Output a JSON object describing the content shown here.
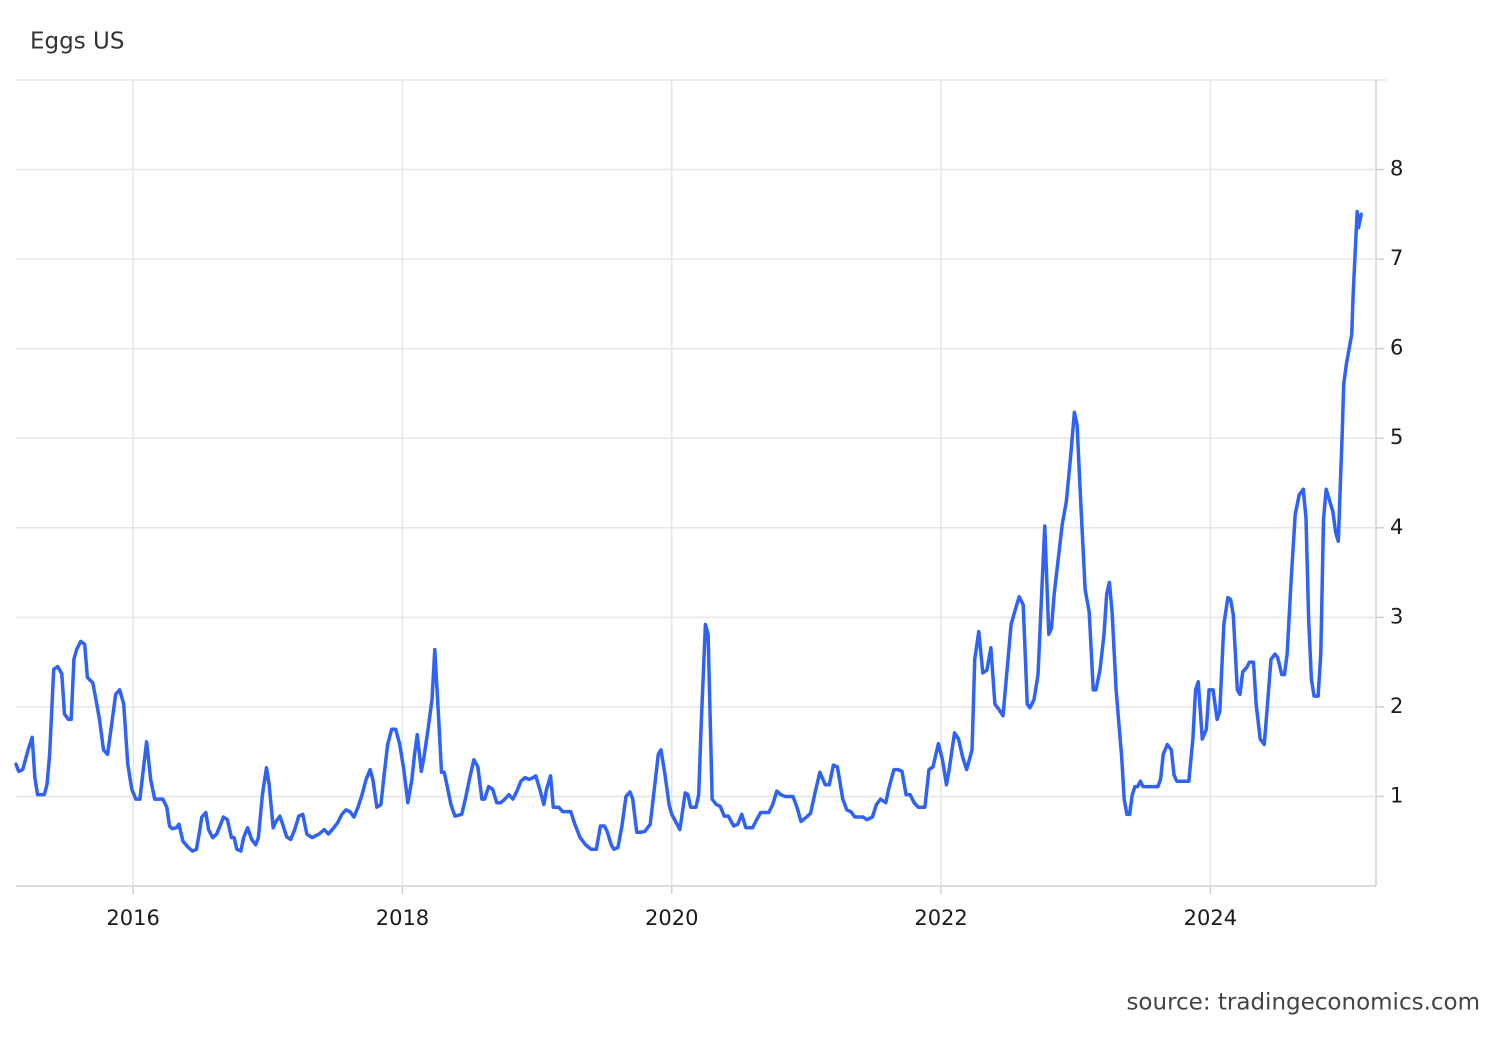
{
  "chart_data": {
    "type": "line",
    "title": "Eggs US",
    "source": "source: tradingeconomics.com",
    "color": "#2f62f5",
    "grid": true,
    "xlim": [
      2015.13,
      2025.23
    ],
    "xticks": [
      2016,
      2018,
      2020,
      2022,
      2024
    ],
    "ylim": [
      0,
      9
    ],
    "yticks": [
      1,
      2,
      3,
      4,
      5,
      6,
      7,
      8
    ],
    "x": [
      2015.13,
      2015.15,
      2015.18,
      2015.22,
      2015.25,
      2015.27,
      2015.29,
      2015.34,
      2015.36,
      2015.38,
      2015.41,
      2015.44,
      2015.47,
      2015.49,
      2015.52,
      2015.54,
      2015.56,
      2015.58,
      2015.61,
      2015.64,
      2015.66,
      2015.7,
      2015.73,
      2015.75,
      2015.78,
      2015.81,
      2015.84,
      2015.87,
      2015.9,
      2015.93,
      2015.96,
      2015.99,
      2016.02,
      2016.05,
      2016.08,
      2016.1,
      2016.13,
      2016.16,
      2016.22,
      2016.25,
      2016.27,
      2016.29,
      2016.32,
      2016.34,
      2016.37,
      2016.41,
      2016.44,
      2016.47,
      2016.49,
      2016.51,
      2016.54,
      2016.56,
      2016.59,
      2016.62,
      2016.65,
      2016.67,
      2016.7,
      2016.73,
      2016.75,
      2016.77,
      2016.8,
      2016.82,
      2016.85,
      2016.88,
      2016.91,
      2016.93,
      2016.96,
      2016.99,
      2017.01,
      2017.04,
      2017.06,
      2017.09,
      2017.11,
      2017.14,
      2017.17,
      2017.2,
      2017.23,
      2017.26,
      2017.29,
      2017.33,
      2017.38,
      2017.42,
      2017.45,
      2017.49,
      2017.52,
      2017.55,
      2017.58,
      2017.61,
      2017.64,
      2017.67,
      2017.7,
      2017.73,
      2017.76,
      2017.78,
      2017.81,
      2017.84,
      2017.86,
      2017.89,
      2017.92,
      2017.95,
      2017.98,
      2018.01,
      2018.04,
      2018.07,
      2018.09,
      2018.11,
      2018.14,
      2018.16,
      2018.19,
      2018.22,
      2018.24,
      2018.27,
      2018.29,
      2018.31,
      2018.33,
      2018.36,
      2018.39,
      2018.44,
      2018.47,
      2018.5,
      2018.53,
      2018.56,
      2018.59,
      2018.61,
      2018.64,
      2018.67,
      2018.7,
      2018.73,
      2018.76,
      2018.79,
      2018.82,
      2018.85,
      2018.88,
      2018.91,
      2018.94,
      2018.97,
      2018.99,
      2019.02,
      2019.05,
      2019.07,
      2019.1,
      2019.12,
      2019.16,
      2019.19,
      2019.25,
      2019.28,
      2019.32,
      2019.36,
      2019.4,
      2019.44,
      2019.47,
      2019.5,
      2019.52,
      2019.55,
      2019.57,
      2019.6,
      2019.63,
      2019.66,
      2019.69,
      2019.71,
      2019.74,
      2019.77,
      2019.8,
      2019.84,
      2019.87,
      2019.9,
      2019.92,
      2019.95,
      2019.98,
      2020.0,
      2020.06,
      2020.1,
      2020.12,
      2020.14,
      2020.18,
      2020.2,
      2020.22,
      2020.25,
      2020.27,
      2020.3,
      2020.33,
      2020.36,
      2020.39,
      2020.42,
      2020.46,
      2020.49,
      2020.52,
      2020.55,
      2020.6,
      2020.63,
      2020.66,
      2020.72,
      2020.75,
      2020.78,
      2020.81,
      2020.84,
      2020.9,
      2020.93,
      2020.96,
      2021.0,
      2021.03,
      2021.07,
      2021.1,
      2021.14,
      2021.17,
      2021.2,
      2021.23,
      2021.27,
      2021.3,
      2021.33,
      2021.36,
      2021.42,
      2021.45,
      2021.49,
      2021.52,
      2021.55,
      2021.59,
      2021.61,
      2021.65,
      2021.68,
      2021.71,
      2021.74,
      2021.77,
      2021.8,
      2021.83,
      2021.88,
      2021.91,
      2021.94,
      2021.98,
      2022.01,
      2022.04,
      2022.06,
      2022.1,
      2022.13,
      2022.16,
      2022.19,
      2022.23,
      2022.25,
      2022.28,
      2022.31,
      2022.34,
      2022.37,
      2022.4,
      2022.43,
      2022.46,
      2022.49,
      2022.52,
      2022.55,
      2022.58,
      2022.61,
      2022.64,
      2022.66,
      2022.69,
      2022.72,
      2022.75,
      2022.77,
      2022.8,
      2022.82,
      2022.84,
      2022.87,
      2022.9,
      2022.93,
      2022.96,
      2022.99,
      2023.01,
      2023.04,
      2023.07,
      2023.1,
      2023.13,
      2023.15,
      2023.18,
      2023.21,
      2023.23,
      2023.25,
      2023.27,
      2023.3,
      2023.33,
      2023.34,
      2023.36,
      2023.38,
      2023.4,
      2023.42,
      2023.44,
      2023.46,
      2023.48,
      2023.5,
      2023.61,
      2023.63,
      2023.65,
      2023.68,
      2023.71,
      2023.73,
      2023.75,
      2023.84,
      2023.87,
      2023.89,
      2023.91,
      2023.94,
      2023.97,
      2023.99,
      2024.02,
      2024.05,
      2024.07,
      2024.1,
      2024.13,
      2024.15,
      2024.17,
      2024.2,
      2024.22,
      2024.24,
      2024.27,
      2024.29,
      2024.32,
      2024.34,
      2024.37,
      2024.4,
      2024.42,
      2024.45,
      2024.48,
      2024.5,
      2024.53,
      2024.55,
      2024.57,
      2024.6,
      2024.63,
      2024.66,
      2024.69,
      2024.71,
      2024.73,
      2024.75,
      2024.77,
      2024.8,
      2024.82,
      2024.84,
      2024.86,
      2024.89,
      2024.91,
      2024.93,
      2024.95,
      2024.98,
      2024.99,
      2025.01,
      2025.05,
      2025.06,
      2025.09,
      2025.1,
      2025.12
    ],
    "values": [
      1.36,
      1.28,
      1.3,
      1.52,
      1.66,
      1.21,
      1.02,
      1.02,
      1.13,
      1.47,
      2.42,
      2.45,
      2.37,
      1.92,
      1.86,
      1.86,
      2.53,
      2.64,
      2.73,
      2.7,
      2.33,
      2.27,
      2.03,
      1.86,
      1.52,
      1.47,
      1.8,
      2.14,
      2.19,
      2.03,
      1.36,
      1.08,
      0.97,
      0.97,
      1.36,
      1.61,
      1.19,
      0.97,
      0.97,
      0.88,
      0.67,
      0.64,
      0.65,
      0.69,
      0.5,
      0.43,
      0.39,
      0.41,
      0.58,
      0.77,
      0.82,
      0.63,
      0.54,
      0.58,
      0.69,
      0.77,
      0.74,
      0.54,
      0.54,
      0.41,
      0.39,
      0.54,
      0.65,
      0.52,
      0.46,
      0.54,
      1.02,
      1.32,
      1.13,
      0.65,
      0.72,
      0.78,
      0.69,
      0.55,
      0.52,
      0.63,
      0.78,
      0.8,
      0.58,
      0.54,
      0.58,
      0.63,
      0.58,
      0.65,
      0.71,
      0.8,
      0.85,
      0.83,
      0.77,
      0.88,
      1.02,
      1.19,
      1.3,
      1.19,
      0.88,
      0.91,
      1.19,
      1.58,
      1.75,
      1.75,
      1.58,
      1.3,
      0.93,
      1.19,
      1.47,
      1.69,
      1.28,
      1.44,
      1.75,
      2.09,
      2.64,
      1.84,
      1.27,
      1.27,
      1.13,
      0.91,
      0.78,
      0.8,
      0.99,
      1.21,
      1.41,
      1.33,
      0.97,
      0.97,
      1.11,
      1.08,
      0.93,
      0.93,
      0.97,
      1.02,
      0.97,
      1.06,
      1.17,
      1.21,
      1.19,
      1.21,
      1.23,
      1.08,
      0.91,
      1.08,
      1.23,
      0.88,
      0.88,
      0.83,
      0.83,
      0.69,
      0.54,
      0.46,
      0.41,
      0.41,
      0.67,
      0.67,
      0.61,
      0.46,
      0.41,
      0.43,
      0.67,
      1.0,
      1.05,
      0.97,
      0.6,
      0.6,
      0.61,
      0.69,
      1.08,
      1.47,
      1.52,
      1.24,
      0.91,
      0.8,
      0.63,
      1.04,
      1.02,
      0.88,
      0.88,
      1.02,
      1.86,
      2.92,
      2.81,
      0.97,
      0.91,
      0.89,
      0.78,
      0.78,
      0.67,
      0.69,
      0.8,
      0.65,
      0.65,
      0.74,
      0.82,
      0.82,
      0.91,
      1.06,
      1.02,
      1.0,
      1.0,
      0.88,
      0.72,
      0.77,
      0.81,
      1.08,
      1.27,
      1.13,
      1.13,
      1.35,
      1.33,
      0.97,
      0.85,
      0.83,
      0.77,
      0.77,
      0.74,
      0.77,
      0.91,
      0.97,
      0.93,
      1.08,
      1.3,
      1.3,
      1.28,
      1.02,
      1.02,
      0.93,
      0.88,
      0.88,
      1.3,
      1.33,
      1.59,
      1.41,
      1.13,
      1.3,
      1.71,
      1.64,
      1.44,
      1.3,
      1.52,
      2.53,
      2.84,
      2.38,
      2.41,
      2.66,
      2.03,
      1.97,
      1.9,
      2.41,
      2.92,
      3.08,
      3.23,
      3.14,
      2.03,
      1.99,
      2.08,
      2.36,
      3.36,
      4.02,
      2.81,
      2.88,
      3.26,
      3.65,
      4.04,
      4.29,
      4.76,
      5.29,
      5.15,
      4.2,
      3.31,
      3.06,
      2.19,
      2.19,
      2.41,
      2.81,
      3.26,
      3.39,
      3.06,
      2.19,
      1.64,
      1.47,
      0.97,
      0.8,
      0.8,
      1.02,
      1.11,
      1.11,
      1.17,
      1.11,
      1.11,
      1.19,
      1.47,
      1.58,
      1.52,
      1.24,
      1.17,
      1.17,
      1.64,
      2.19,
      2.28,
      1.64,
      1.75,
      2.19,
      2.19,
      1.86,
      1.95,
      2.92,
      3.22,
      3.2,
      3.03,
      2.19,
      2.14,
      2.39,
      2.44,
      2.5,
      2.5,
      2.03,
      1.64,
      1.58,
      1.95,
      2.53,
      2.59,
      2.55,
      2.36,
      2.36,
      2.59,
      3.42,
      4.15,
      4.37,
      4.43,
      4.11,
      2.97,
      2.31,
      2.12,
      2.12,
      2.59,
      4.09,
      4.43,
      4.28,
      4.18,
      3.95,
      3.85,
      5.1,
      5.6,
      5.83,
      6.16,
      6.6,
      7.53,
      7.35,
      7.5
    ]
  }
}
